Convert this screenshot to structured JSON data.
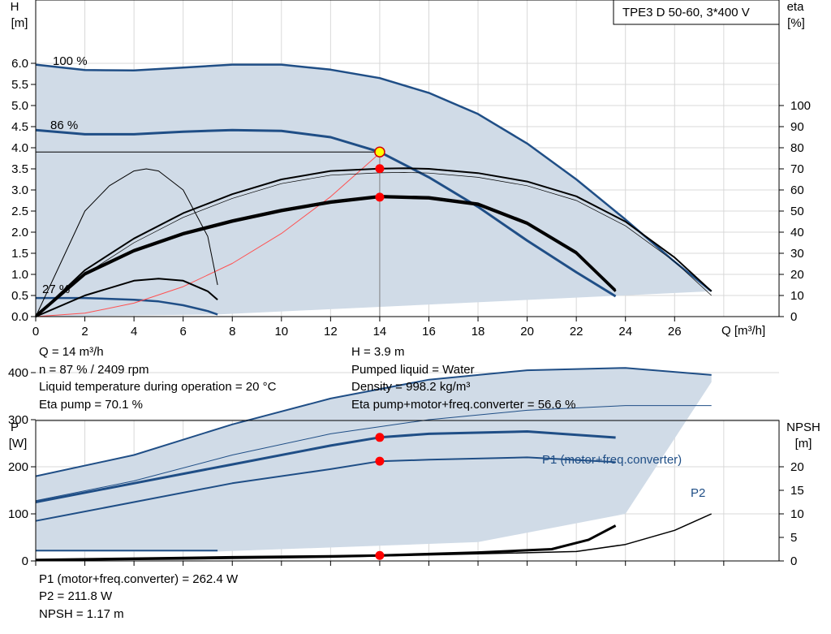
{
  "model_label": "TPE3 D 50-60, 3*400 V",
  "colors": {
    "curve_blue": "#1f4e86",
    "fill_area": "#d0dbe7",
    "efficiency_black": "#000000",
    "system_curve": "#ff5050",
    "operating_point": "#ff0000",
    "duty_point_fill": "#ffff00",
    "p1_label": "#1f4e86"
  },
  "top_chart": {
    "y_left_title": "H",
    "y_left_unit": "[m]",
    "y_right_title": "eta",
    "y_right_unit": "[%]",
    "x_label": "Q [m³/h]",
    "x_ticks": [
      "0",
      "2",
      "4",
      "6",
      "8",
      "10",
      "12",
      "14",
      "16",
      "18",
      "20",
      "22",
      "24",
      "26"
    ],
    "y_left_ticks": [
      "0.0",
      "0.5",
      "1.0",
      "1.5",
      "2.0",
      "2.5",
      "3.0",
      "3.5",
      "4.0",
      "4.5",
      "5.0",
      "5.5",
      "6.0"
    ],
    "y_right_ticks": [
      "0",
      "10",
      "20",
      "30",
      "40",
      "50",
      "60",
      "70",
      "80",
      "90",
      "100"
    ],
    "speed_labels": [
      "100 %",
      "86 %",
      "27 %"
    ]
  },
  "bottom_chart": {
    "y_left_title": "P",
    "y_left_unit": "[W]",
    "y_right_title": "NPSH",
    "y_right_unit": "[m]",
    "y_left_ticks": [
      "0",
      "100",
      "200",
      "300",
      "400"
    ],
    "y_right_ticks": [
      "0",
      "5",
      "10",
      "15",
      "20"
    ],
    "p1_label": "P1 (motor+freq.converter)",
    "p2_label": "P2"
  },
  "info_top": {
    "q": "Q = 14 m³/h",
    "n": "n = 87 % / 2409 rpm",
    "liquid_temp": "Liquid temperature during operation = 20 °C",
    "eta_pump": "Eta pump = 70.1 %",
    "h": "H = 3.9 m",
    "pumped_liquid": "Pumped liquid = Water",
    "density": "Density = 998.2 kg/m³",
    "eta_total": "Eta pump+motor+freq.converter = 56.6 %"
  },
  "info_bottom": {
    "p1": "P1 (motor+freq.converter) = 262.4 W",
    "p2": "P2 = 211.8 W",
    "npsh": "NPSH = 1.17 m"
  },
  "chart_data": [
    {
      "type": "line",
      "title": "TPE3 D 50-60, 3*400 V",
      "xlabel": "Q [m³/h]",
      "ylabel": "H [m]",
      "y2label": "eta [%]",
      "xlim": [
        0,
        29
      ],
      "ylim": [
        0,
        6.5
      ],
      "y2lim": [
        0,
        100
      ],
      "grid": true,
      "series": [
        {
          "name": "100 %",
          "axis": "H",
          "color": "#1f4e86",
          "x": [
            0,
            2,
            4,
            6,
            8,
            10,
            12,
            14,
            16,
            18,
            20,
            22,
            24,
            26,
            27.5
          ],
          "y": [
            5.97,
            5.84,
            5.83,
            5.9,
            5.97,
            5.97,
            5.85,
            5.65,
            5.3,
            4.8,
            4.1,
            3.25,
            2.3,
            1.3,
            0.6
          ]
        },
        {
          "name": "86 %",
          "axis": "H",
          "color": "#1f4e86",
          "x": [
            0,
            2,
            4,
            6,
            8,
            10,
            12,
            14,
            16,
            18,
            20,
            22,
            23.6
          ],
          "y": [
            4.42,
            4.32,
            4.32,
            4.38,
            4.42,
            4.4,
            4.25,
            3.9,
            3.3,
            2.6,
            1.8,
            1.05,
            0.48
          ]
        },
        {
          "name": "27 %",
          "axis": "H",
          "color": "#1f4e86",
          "x": [
            0,
            2,
            4,
            5,
            6,
            7,
            7.4
          ],
          "y": [
            0.44,
            0.44,
            0.4,
            0.36,
            0.27,
            0.13,
            0.05
          ]
        },
        {
          "name": "",
          "axis": "H",
          "color": "#ff5050",
          "x": [
            0,
            2,
            4,
            6,
            8,
            10,
            12,
            14
          ],
          "y": [
            0,
            0.08,
            0.32,
            0.71,
            1.26,
            1.97,
            2.84,
            3.87
          ]
        },
        {
          "name": "",
          "axis": "eta",
          "color": "#000000",
          "x": [
            0,
            2,
            4,
            6,
            8,
            10,
            12,
            14,
            15,
            16,
            18,
            20,
            22,
            24,
            26,
            27.5
          ],
          "y": [
            0,
            22,
            37,
            49,
            58,
            65,
            69,
            70.1,
            70.3,
            70,
            68,
            64,
            57,
            45,
            28,
            12
          ]
        },
        {
          "name": "",
          "axis": "eta",
          "color": "#000000",
          "x": [
            0,
            2,
            4,
            6,
            8,
            10,
            12,
            14,
            16,
            18,
            20,
            22,
            23.6
          ],
          "y": [
            0,
            20,
            31,
            39,
            45,
            50,
            54,
            56.6,
            56,
            53,
            44,
            30,
            12
          ]
        },
        {
          "name": "",
          "axis": "eta",
          "color": "#000000",
          "x": [
            0,
            2,
            4,
            5,
            6,
            7,
            7.4
          ],
          "y": [
            0,
            10,
            17,
            18,
            17,
            12,
            8
          ]
        },
        {
          "name": "",
          "axis": "eta",
          "color": "#000000",
          "x": [
            0,
            1,
            2,
            3,
            4,
            4.5,
            5,
            6,
            7,
            7.4
          ],
          "y": [
            0,
            25,
            50,
            62,
            69,
            70,
            69,
            60,
            38,
            15
          ]
        }
      ],
      "duty_point": {
        "x": 14,
        "y": 3.9
      },
      "marked_points": [
        {
          "x": 14,
          "eta": 70.1
        },
        {
          "x": 14,
          "eta": 56.6
        }
      ]
    },
    {
      "type": "line",
      "xlabel": "",
      "ylabel": "P [W]",
      "y2label": "NPSH [m]",
      "xlim": [
        0,
        29
      ],
      "ylim": [
        0,
        450
      ],
      "y2lim": [
        0,
        22.5
      ],
      "grid": true,
      "series": [
        {
          "name": "P1 (motor+freq.converter)",
          "axis": "P",
          "color": "#1f4e86",
          "x": [
            0,
            4,
            8,
            12,
            16,
            20,
            24,
            27.5
          ],
          "y": [
            180,
            225,
            290,
            345,
            385,
            405,
            410,
            395
          ]
        },
        {
          "name": "P2",
          "axis": "P",
          "color": "#1f4e86",
          "x": [
            0,
            4,
            8,
            12,
            16,
            20,
            24,
            27.5
          ],
          "y": [
            128,
            170,
            225,
            270,
            300,
            320,
            330,
            330
          ]
        },
        {
          "name": "",
          "axis": "P",
          "color": "#1f4e86",
          "x": [
            0,
            4,
            8,
            12,
            14,
            16,
            20,
            23.6
          ],
          "y": [
            125,
            165,
            205,
            245,
            262.4,
            270,
            275,
            262
          ]
        },
        {
          "name": "",
          "axis": "P",
          "color": "#1f4e86",
          "x": [
            0,
            4,
            8,
            12,
            14,
            16,
            20,
            23.6
          ],
          "y": [
            85,
            125,
            165,
            195,
            211.8,
            215,
            220,
            210
          ]
        },
        {
          "name": "",
          "axis": "P",
          "color": "#1f4e86",
          "x": [
            0,
            7.4
          ],
          "y": [
            22,
            22
          ]
        },
        {
          "name": "",
          "axis": "NPSH",
          "color": "#000000",
          "x": [
            0,
            4,
            8,
            12,
            14,
            18,
            21,
            22.5,
            23.6
          ],
          "y": [
            0.2,
            0.5,
            0.8,
            1.0,
            1.17,
            1.8,
            2.5,
            4.5,
            7.5
          ]
        },
        {
          "name": "",
          "axis": "NPSH",
          "color": "#000000",
          "x": [
            0,
            6,
            12,
            18,
            22,
            24,
            26,
            27.5
          ],
          "y": [
            0.1,
            0.4,
            0.8,
            1.5,
            2.0,
            3.5,
            6.5,
            10
          ]
        }
      ],
      "marked_points": [
        {
          "x": 14,
          "p": 262.4
        },
        {
          "x": 14,
          "p": 211.8
        },
        {
          "x": 14,
          "npsh": 1.17
        }
      ]
    }
  ]
}
